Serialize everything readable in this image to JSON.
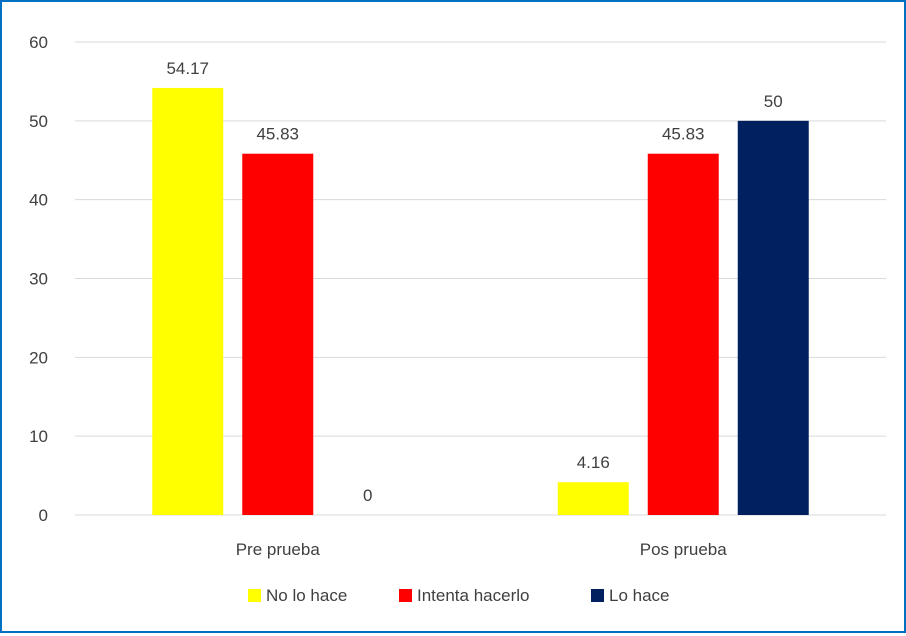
{
  "chart_data": {
    "type": "bar",
    "categories": [
      "Pre prueba",
      "Pos prueba"
    ],
    "series": [
      {
        "name": "No lo hace",
        "color": "#ffff00",
        "values": [
          54.17,
          4.16
        ],
        "labels": [
          "54.17",
          "4.16"
        ]
      },
      {
        "name": "Intenta hacerlo",
        "color": "#ff0000",
        "values": [
          45.83,
          45.83
        ],
        "labels": [
          "45.83",
          "45.83"
        ]
      },
      {
        "name": "Lo hace",
        "color": "#002060",
        "values": [
          0,
          50
        ],
        "labels": [
          "0",
          "50"
        ]
      }
    ],
    "ylim": [
      0,
      60
    ],
    "yticks": [
      0,
      10,
      20,
      30,
      40,
      50,
      60
    ],
    "ytick_labels": [
      "0",
      "10",
      "20",
      "30",
      "40",
      "50",
      "60"
    ],
    "grid": true,
    "legend_position": "bottom",
    "border_color": "#0070c0"
  }
}
